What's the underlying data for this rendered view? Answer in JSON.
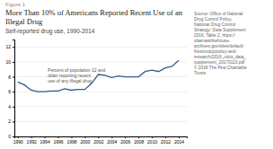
{
  "chart_data": {
    "type": "line",
    "figure_label": "Figure 1",
    "title": "More Than 10% of Americans Reported Recent Use of an Illegal Drug",
    "subtitle": "Self-reported drug use, 1990-2014",
    "source": "Source: Office of National\nDrug Control Policy,\nNational Drug Control\nStrategy: Data Supplement\n2016, Table 2, https://\nobamawhitehouse.\narchives.gov/sites/default/\nfiles/ondcp/policy-and-\nresearch/2016_ndcs_data_\nsupplement_20170110.pdf\n\n© 2018 The Pew Charitable\nTrusts",
    "x": [
      1990,
      1991,
      1992,
      1993,
      1994,
      1995,
      1996,
      1997,
      1998,
      1999,
      2000,
      2001,
      2002,
      2003,
      2004,
      2005,
      2006,
      2007,
      2008,
      2009,
      2010,
      2011,
      2012,
      2013,
      2014
    ],
    "values": [
      7.3,
      6.9,
      6.2,
      6.0,
      6.0,
      6.1,
      6.1,
      6.4,
      6.2,
      6.3,
      6.3,
      7.1,
      8.3,
      8.2,
      7.9,
      8.1,
      8.0,
      8.0,
      8.0,
      8.7,
      8.9,
      8.7,
      9.2,
      9.4,
      10.2
    ],
    "color": "#2b5f8e",
    "xlim": [
      1989.5,
      2015.2
    ],
    "xticks": [
      1990,
      1992,
      1994,
      1996,
      1998,
      2000,
      2002,
      2004,
      2006,
      2008,
      2010,
      2012,
      2014
    ],
    "ylim": [
      0,
      13
    ],
    "yticks": [
      0,
      2,
      4,
      6,
      8,
      10,
      12
    ],
    "grid": true,
    "annotations": [
      {
        "text": "Percent of population 12 and\nolder reporting recent\nuse of any illegal drug",
        "x": 1994.5,
        "y": 8.05
      }
    ]
  }
}
